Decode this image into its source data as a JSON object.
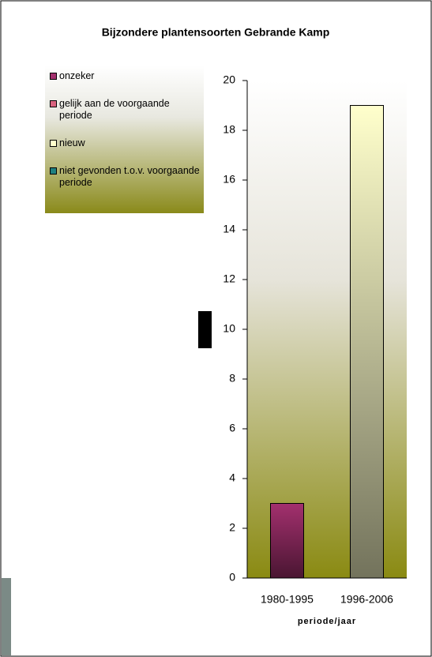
{
  "chart_data": {
    "type": "bar",
    "stacked": true,
    "title": "Bijzondere plantensoorten Gebrande Kamp",
    "x_label": "periode/jaar",
    "categories": [
      "1980-1995",
      "1996-2006"
    ],
    "series": [
      {
        "name": "onzeker",
        "color": "#a3306e",
        "values": [
          3,
          0
        ]
      },
      {
        "name": "gelijk aan de voorgaande periode",
        "color": "#d9637f",
        "values": [
          0,
          0
        ]
      },
      {
        "name": "nieuw",
        "color": "#ffffcc",
        "values": [
          0,
          19
        ]
      },
      {
        "name": "niet gevonden t.o.v. voorgaande periode",
        "color": "#1f8080",
        "values": [
          0,
          0
        ]
      }
    ],
    "ylim": [
      0,
      20
    ],
    "yticks": [
      0,
      2,
      4,
      6,
      8,
      10,
      12,
      14,
      16,
      18,
      20
    ],
    "legend": "top-left"
  }
}
